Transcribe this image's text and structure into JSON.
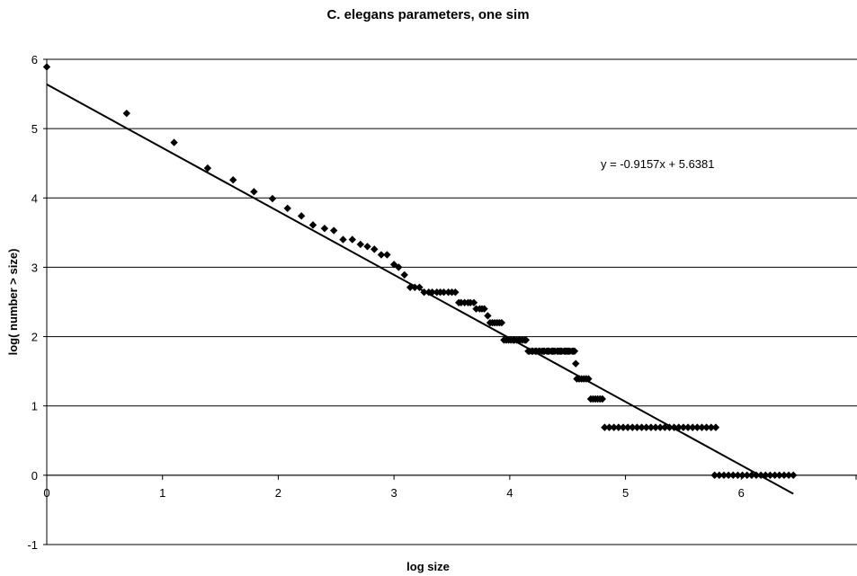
{
  "chart_data": {
    "type": "scatter",
    "title": "C. elegans parameters, one sim",
    "xlabel": "log size",
    "ylabel": "log( number > size)",
    "xlim": [
      0,
      7
    ],
    "ylim": [
      -1,
      6
    ],
    "xticks": [
      "0",
      "1",
      "2",
      "3",
      "4",
      "5",
      "6"
    ],
    "yticks": [
      "-1",
      "0",
      "1",
      "2",
      "3",
      "4",
      "5",
      "6"
    ],
    "grid": "horizontal",
    "legend": "none",
    "marker_color": "#000000",
    "trendline": {
      "slope": -0.9157,
      "intercept": 5.6381,
      "x_range": [
        0,
        6.45
      ]
    },
    "equation_label": "y = -0.9157x + 5.6381",
    "points": [
      [
        0.0,
        5.89
      ],
      [
        0.69,
        5.22
      ],
      [
        1.1,
        4.8
      ],
      [
        1.39,
        4.43
      ],
      [
        1.61,
        4.26
      ],
      [
        1.79,
        4.09
      ],
      [
        1.95,
        3.99
      ],
      [
        2.08,
        3.85
      ],
      [
        2.2,
        3.74
      ],
      [
        2.3,
        3.61
      ],
      [
        2.4,
        3.56
      ],
      [
        2.48,
        3.53
      ],
      [
        2.56,
        3.4
      ],
      [
        2.64,
        3.4
      ],
      [
        2.71,
        3.33
      ],
      [
        2.77,
        3.3
      ],
      [
        2.83,
        3.26
      ],
      [
        2.89,
        3.18
      ],
      [
        2.94,
        3.18
      ],
      [
        3.0,
        3.04
      ],
      [
        3.04,
        3.0
      ],
      [
        3.09,
        2.89
      ],
      [
        3.14,
        2.71
      ],
      [
        3.18,
        2.71
      ],
      [
        3.22,
        2.71
      ],
      [
        3.26,
        2.64
      ],
      [
        3.3,
        2.64
      ],
      [
        3.33,
        2.64
      ],
      [
        3.37,
        2.64
      ],
      [
        3.4,
        2.64
      ],
      [
        3.43,
        2.64
      ],
      [
        3.47,
        2.64
      ],
      [
        3.5,
        2.64
      ],
      [
        3.53,
        2.64
      ],
      [
        3.56,
        2.49
      ],
      [
        3.58,
        2.49
      ],
      [
        3.61,
        2.49
      ],
      [
        3.64,
        2.49
      ],
      [
        3.66,
        2.49
      ],
      [
        3.69,
        2.49
      ],
      [
        3.71,
        2.4
      ],
      [
        3.74,
        2.4
      ],
      [
        3.76,
        2.4
      ],
      [
        3.78,
        2.4
      ],
      [
        3.81,
        2.3
      ],
      [
        3.83,
        2.2
      ],
      [
        3.85,
        2.2
      ],
      [
        3.87,
        2.2
      ],
      [
        3.89,
        2.2
      ],
      [
        3.91,
        2.2
      ],
      [
        3.93,
        2.2
      ],
      [
        3.95,
        1.95
      ],
      [
        3.97,
        1.95
      ],
      [
        3.99,
        1.95
      ],
      [
        4.01,
        1.95
      ],
      [
        4.03,
        1.95
      ],
      [
        4.04,
        1.95
      ],
      [
        4.06,
        1.95
      ],
      [
        4.08,
        1.95
      ],
      [
        4.09,
        1.95
      ],
      [
        4.11,
        1.95
      ],
      [
        4.13,
        1.95
      ],
      [
        4.14,
        1.95
      ],
      [
        4.16,
        1.79
      ],
      [
        4.17,
        1.79
      ],
      [
        4.19,
        1.79
      ],
      [
        4.2,
        1.79
      ],
      [
        4.22,
        1.79
      ],
      [
        4.23,
        1.79
      ],
      [
        4.25,
        1.79
      ],
      [
        4.26,
        1.79
      ],
      [
        4.28,
        1.79
      ],
      [
        4.29,
        1.79
      ],
      [
        4.3,
        1.79
      ],
      [
        4.32,
        1.79
      ],
      [
        4.33,
        1.79
      ],
      [
        4.34,
        1.79
      ],
      [
        4.36,
        1.79
      ],
      [
        4.37,
        1.79
      ],
      [
        4.38,
        1.79
      ],
      [
        4.39,
        1.79
      ],
      [
        4.41,
        1.79
      ],
      [
        4.42,
        1.79
      ],
      [
        4.43,
        1.79
      ],
      [
        4.44,
        1.79
      ],
      [
        4.45,
        1.79
      ],
      [
        4.47,
        1.79
      ],
      [
        4.48,
        1.79
      ],
      [
        4.49,
        1.79
      ],
      [
        4.5,
        1.79
      ],
      [
        4.51,
        1.79
      ],
      [
        4.52,
        1.79
      ],
      [
        4.54,
        1.79
      ],
      [
        4.55,
        1.79
      ],
      [
        4.56,
        1.79
      ],
      [
        4.57,
        1.61
      ],
      [
        4.58,
        1.39
      ],
      [
        4.6,
        1.39
      ],
      [
        4.62,
        1.39
      ],
      [
        4.64,
        1.39
      ],
      [
        4.66,
        1.39
      ],
      [
        4.68,
        1.39
      ],
      [
        4.7,
        1.1
      ],
      [
        4.72,
        1.1
      ],
      [
        4.74,
        1.1
      ],
      [
        4.76,
        1.1
      ],
      [
        4.78,
        1.1
      ],
      [
        4.8,
        1.1
      ],
      [
        4.82,
        0.69
      ],
      [
        4.86,
        0.69
      ],
      [
        4.9,
        0.69
      ],
      [
        4.94,
        0.69
      ],
      [
        4.98,
        0.69
      ],
      [
        5.02,
        0.69
      ],
      [
        5.06,
        0.69
      ],
      [
        5.1,
        0.69
      ],
      [
        5.14,
        0.69
      ],
      [
        5.18,
        0.69
      ],
      [
        5.22,
        0.69
      ],
      [
        5.26,
        0.69
      ],
      [
        5.3,
        0.69
      ],
      [
        5.34,
        0.69
      ],
      [
        5.38,
        0.69
      ],
      [
        5.42,
        0.69
      ],
      [
        5.46,
        0.69
      ],
      [
        5.5,
        0.69
      ],
      [
        5.54,
        0.69
      ],
      [
        5.58,
        0.69
      ],
      [
        5.62,
        0.69
      ],
      [
        5.66,
        0.69
      ],
      [
        5.7,
        0.69
      ],
      [
        5.74,
        0.69
      ],
      [
        5.78,
        0.69
      ],
      [
        5.77,
        0.0
      ],
      [
        5.81,
        0.0
      ],
      [
        5.85,
        0.0
      ],
      [
        5.89,
        0.0
      ],
      [
        5.93,
        0.0
      ],
      [
        5.97,
        0.0
      ],
      [
        6.01,
        0.0
      ],
      [
        6.05,
        0.0
      ],
      [
        6.09,
        0.0
      ],
      [
        6.13,
        0.0
      ],
      [
        6.17,
        0.0
      ],
      [
        6.21,
        0.0
      ],
      [
        6.25,
        0.0
      ],
      [
        6.29,
        0.0
      ],
      [
        6.33,
        0.0
      ],
      [
        6.37,
        0.0
      ],
      [
        6.41,
        0.0
      ],
      [
        6.45,
        0.0
      ]
    ]
  }
}
